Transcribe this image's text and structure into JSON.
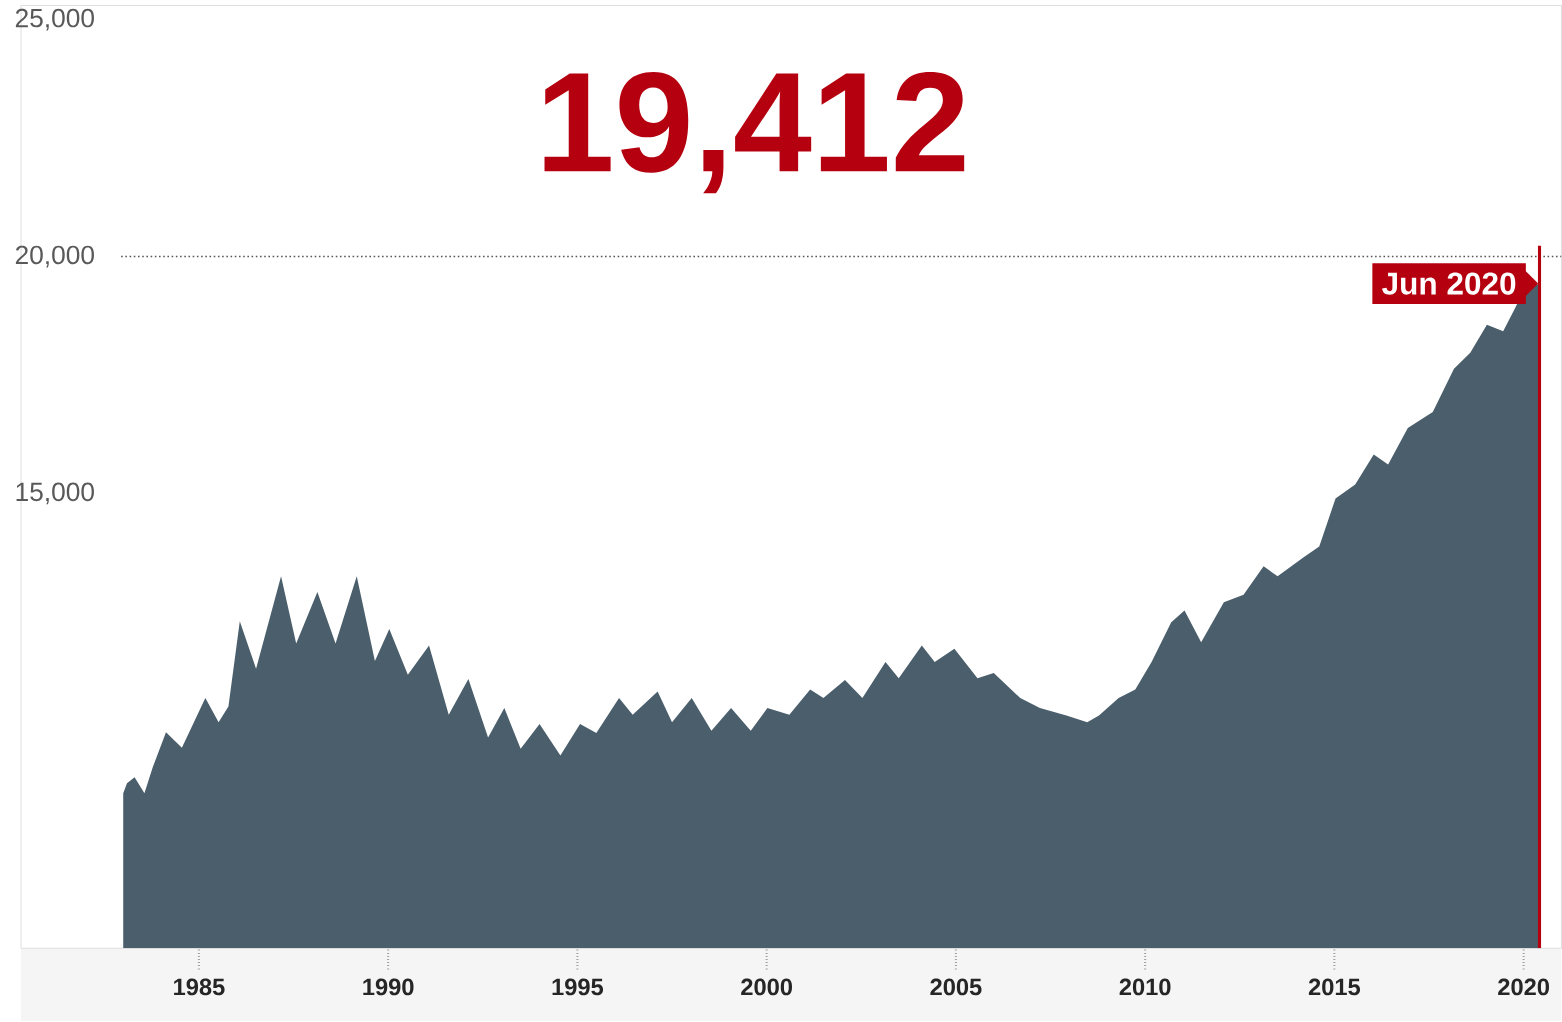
{
  "chart_data": {
    "type": "area",
    "title": "19,412",
    "color": "#4a5e6c",
    "x": [
      1983.0,
      1983.1,
      1983.3,
      1983.56,
      1983.78,
      1984.13,
      1984.55,
      1985.17,
      1985.52,
      1985.78,
      1986.08,
      1986.51,
      1987.17,
      1987.57,
      1988.13,
      1988.61,
      1989.17,
      1989.65,
      1990.03,
      1990.52,
      1991.08,
      1991.6,
      1992.12,
      1992.64,
      1993.07,
      1993.5,
      1994.0,
      1994.55,
      1995.07,
      1995.5,
      1996.1,
      1996.46,
      1997.12,
      1997.5,
      1998.02,
      1998.54,
      1999.06,
      1999.58,
      2000.02,
      2000.6,
      2001.15,
      2001.5,
      2002.07,
      2002.53,
      2003.14,
      2003.49,
      2004.1,
      2004.44,
      2004.96,
      2005.57,
      2006.0,
      2006.7,
      2007.22,
      2007.92,
      2008.47,
      2008.78,
      2009.3,
      2009.74,
      2010.17,
      2010.69,
      2011.04,
      2011.48,
      2012.08,
      2012.6,
      2013.13,
      2013.5,
      2014.17,
      2014.6,
      2015.03,
      2015.55,
      2016.04,
      2016.42,
      2016.94,
      2017.6,
      2018.16,
      2018.59,
      2019.03,
      2019.46,
      2019.8,
      2020.07,
      2020.42
    ],
    "values": [
      8670,
      8880,
      9010,
      8670,
      9220,
      9960,
      9630,
      10680,
      10170,
      10500,
      12300,
      11300,
      13250,
      11830,
      12920,
      11830,
      13250,
      11460,
      12140,
      11170,
      11790,
      10330,
      11080,
      9850,
      10470,
      9610,
      10130,
      9470,
      10130,
      9940,
      10680,
      10330,
      10820,
      10170,
      10680,
      9990,
      10470,
      9990,
      10470,
      10330,
      10860,
      10680,
      11060,
      10680,
      11440,
      11100,
      11790,
      11440,
      11720,
      11100,
      11210,
      10680,
      10470,
      10310,
      10170,
      10310,
      10680,
      10860,
      11440,
      12280,
      12530,
      11860,
      12700,
      12860,
      13460,
      13250,
      13640,
      13880,
      14890,
      15190,
      15820,
      15610,
      16380,
      16720,
      17630,
      17970,
      18560,
      18420,
      18950,
      19430,
      19410
    ],
    "xlim": [
      1980.3,
      2021.0
    ],
    "ylim": [
      5400,
      25300
    ],
    "xticks": [
      1985,
      1990,
      1995,
      2000,
      2005,
      2010,
      2015,
      2020
    ],
    "yticks": [
      {
        "value": 15000,
        "label": "15,000"
      },
      {
        "value": 20000,
        "label": "20,000"
      },
      {
        "value": 25000,
        "label": "25,000"
      }
    ],
    "ref_lines": [
      {
        "axis": "y",
        "value": 20000,
        "color": "#555555",
        "line_style": "dotted"
      },
      {
        "axis": "x",
        "value": 2020.42,
        "label": "Jun 2020",
        "color": "#b5000f",
        "line_style": "solid"
      }
    ]
  }
}
